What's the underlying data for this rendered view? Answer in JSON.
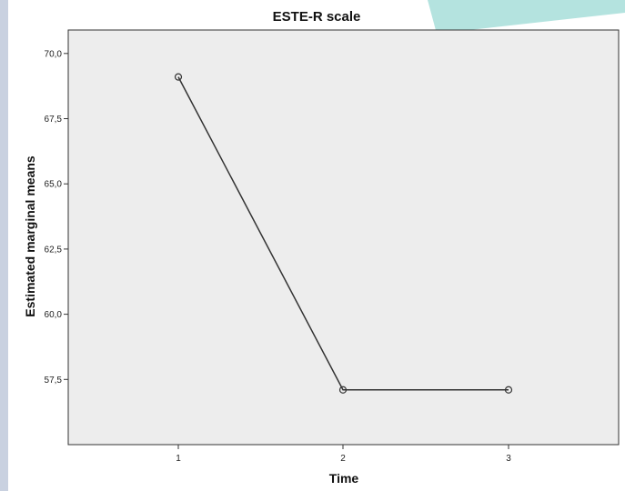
{
  "chart_data": {
    "type": "line",
    "title": "ESTE-R scale",
    "xlabel": "Time",
    "ylabel": "Estimated marginal means",
    "x": [
      "1",
      "2",
      "3"
    ],
    "series": [
      {
        "values": [
          69.1,
          57.1,
          57.1
        ]
      }
    ],
    "ylim": [
      55.0,
      70.9
    ],
    "yticks": [
      "70,0",
      "67,5",
      "65,0",
      "62,5",
      "60,0",
      "57,5"
    ],
    "yticks_values": [
      70.0,
      67.5,
      65.0,
      62.5,
      60.0,
      57.5
    ],
    "grid": false,
    "legend": "none",
    "colors": {
      "plot_background": "#ededed",
      "line": "#333333",
      "decoration": "#b4e3df",
      "strip": "#c9d1e0"
    }
  }
}
